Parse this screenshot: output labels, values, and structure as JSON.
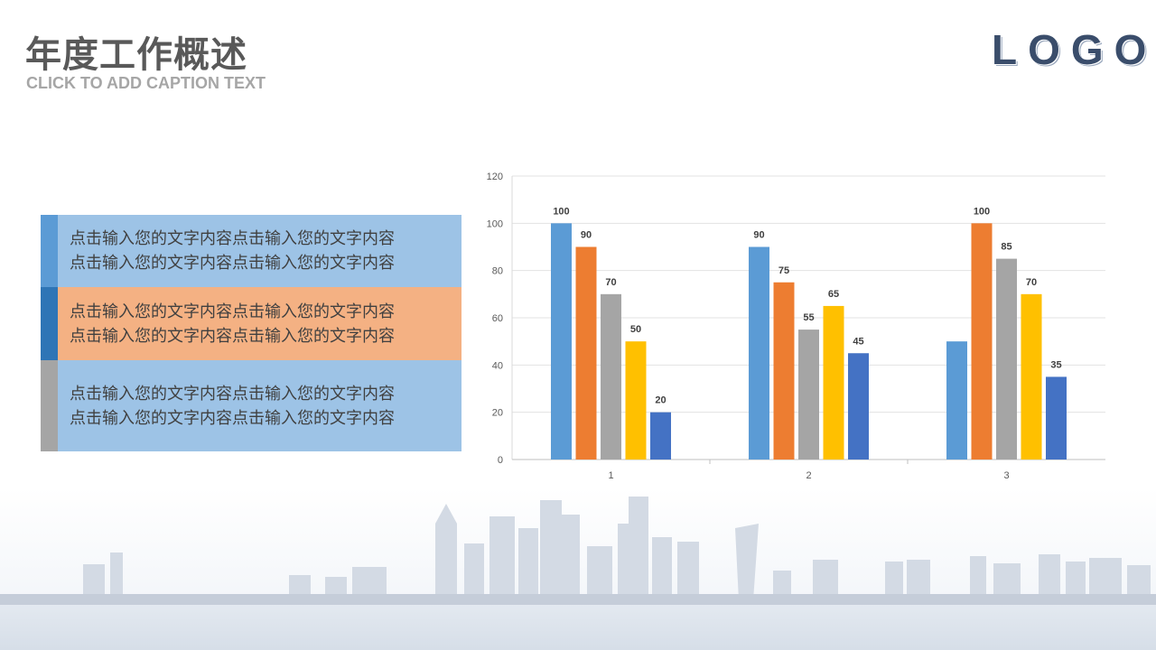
{
  "header": {
    "title": "年度工作概述",
    "caption": "CLICK TO ADD CAPTION TEXT",
    "logo": "LOGO"
  },
  "text_blocks": [
    {
      "line1": "点击输入您的文字内容点击输入您的文字内容",
      "line2": "点击输入您的文字内容点击输入您的文字内容"
    },
    {
      "line1": "点击输入您的文字内容点击输入您的文字内容",
      "line2": "点击输入您的文字内容点击输入您的文字内容"
    },
    {
      "line1": "点击输入您的文字内容点击输入您的文字内容",
      "line2": "点击输入您的文字内容点击输入您的文字内容"
    }
  ],
  "colors": {
    "series": [
      "#5b9bd5",
      "#ed7d31",
      "#a5a5a5",
      "#ffc000",
      "#4472c4"
    ]
  },
  "chart_data": {
    "type": "bar",
    "categories": [
      "1",
      "2",
      "3"
    ],
    "series": [
      {
        "values": [
          100,
          90,
          50
        ]
      },
      {
        "values": [
          90,
          75,
          100
        ]
      },
      {
        "values": [
          70,
          55,
          85
        ]
      },
      {
        "values": [
          50,
          65,
          70
        ]
      },
      {
        "values": [
          20,
          45,
          35
        ]
      }
    ],
    "data_labels": [
      [
        "100",
        "90",
        "70",
        "50",
        "20"
      ],
      [
        "90",
        "75",
        "55",
        "65",
        "45"
      ],
      [
        "",
        "100",
        "85",
        "70",
        "35"
      ]
    ],
    "y_ticks": [
      0,
      20,
      40,
      60,
      80,
      100,
      120
    ],
    "ylim": [
      0,
      120
    ],
    "grid": true,
    "legend": "none"
  }
}
